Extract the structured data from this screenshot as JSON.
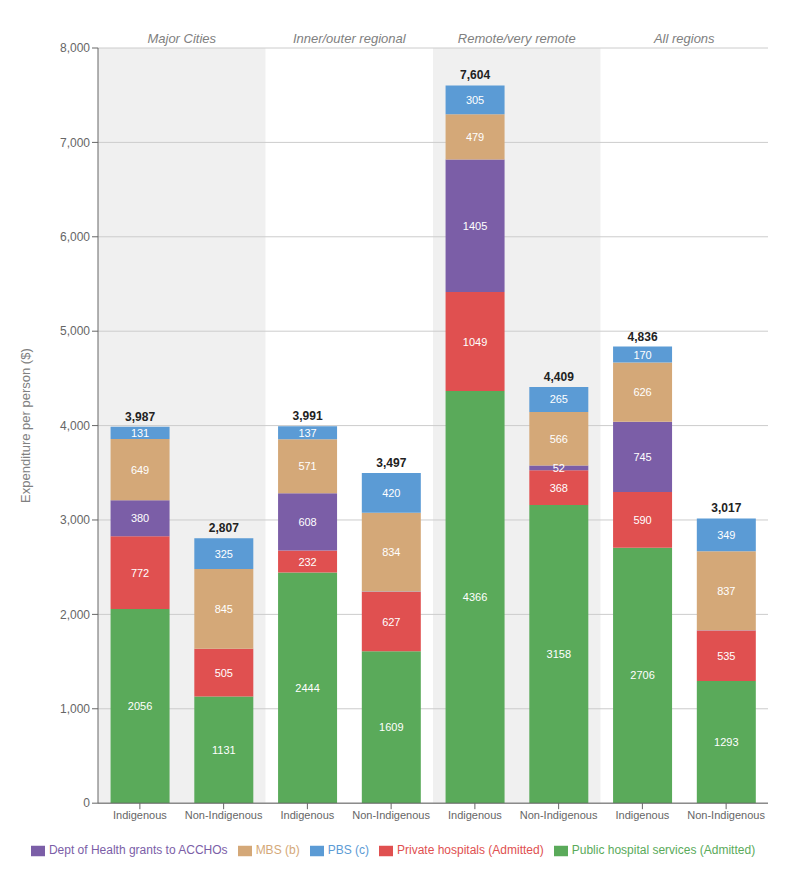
{
  "chart_data": {
    "type": "bar",
    "stacked": true,
    "title": "",
    "ylabel": "Expenditure per person ($)",
    "categories": [
      "Indigenous",
      "Non-Indigenous",
      "Indigenous",
      "Non-Indigenous",
      "Indigenous",
      "Non-Indigenous",
      "Indigenous",
      "Non-Indigenous"
    ],
    "annotations": [
      "Major Cities",
      "Inner/outer regional",
      "Remote/very remote",
      "All regions"
    ],
    "series": [
      {
        "name": "Public hospital services (Admitted)",
        "color": "#5aaa5a",
        "values": [
          2056,
          1131,
          2444,
          1609,
          4366,
          3158,
          2706,
          1293
        ],
        "value_labels": [
          "2056",
          "1131",
          "2444",
          "1609",
          "4366",
          "3158",
          "2706",
          "1293"
        ]
      },
      {
        "name": "Private hospitals (Admitted)",
        "color": "#e05050",
        "values": [
          772,
          505,
          232,
          627,
          1049,
          368,
          590,
          535
        ],
        "value_labels": [
          "772",
          "505",
          "232",
          "627",
          "1049",
          "368",
          "590",
          "535"
        ]
      },
      {
        "name": "Dept of Health grants to ACCHOs",
        "color": "#7b5ea7",
        "values": [
          380,
          1,
          608,
          7,
          1405,
          52,
          745,
          3
        ],
        "value_labels": [
          "380",
          null,
          "608",
          null,
          "1405",
          "52",
          "745",
          null
        ]
      },
      {
        "name": "MBS (b)",
        "color": "#d4a878",
        "values": [
          649,
          845,
          571,
          834,
          479,
          566,
          626,
          837
        ],
        "value_labels": [
          "649",
          "845",
          "571",
          "834",
          "479",
          "566",
          "626",
          "837"
        ]
      },
      {
        "name": "PBS (c)",
        "color": "#5b9bd5",
        "values": [
          131,
          325,
          137,
          420,
          305,
          265,
          170,
          349
        ],
        "value_labels": [
          "131",
          "325",
          "137",
          "420",
          "305",
          "265",
          "170",
          "349"
        ]
      }
    ],
    "totals": [
      3987,
      2807,
      3991,
      3497,
      7604,
      4409,
      4836,
      3017
    ],
    "total_labels": [
      "3,987",
      "2,807",
      "3,991",
      "3,497",
      "7,604",
      "4,409",
      "4,836",
      "3,017"
    ],
    "ylim": [
      0,
      8000
    ],
    "yticks": [
      0,
      {
        "value": 1000,
        "label": "1,000"
      },
      {
        "value": 2000,
        "label": "2,000"
      },
      {
        "value": 3000,
        "label": "3,000"
      },
      {
        "value": 4000,
        "label": "4,000"
      },
      {
        "value": 5000,
        "label": "5,000"
      },
      {
        "value": 6000,
        "label": "6,000"
      },
      {
        "value": 7000,
        "label": "7,000"
      },
      {
        "value": 8000,
        "label": "8,000"
      }
    ],
    "grid": true,
    "legend": "bottom"
  }
}
